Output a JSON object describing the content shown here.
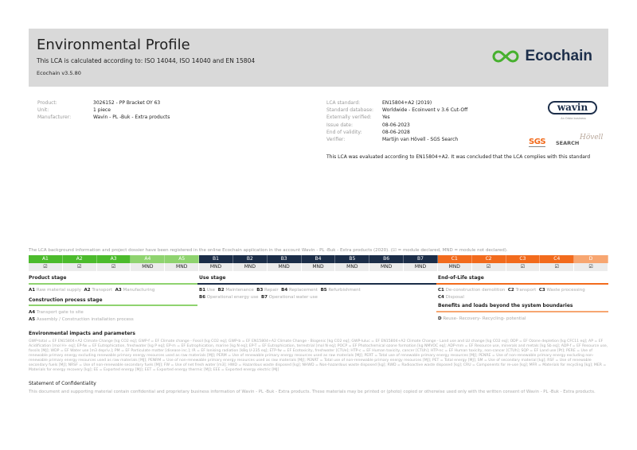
{
  "header": {
    "title": "Environmental Profile",
    "subtitle": "This LCA is calculated according to: ISO 14044, ISO 14040 and EN 15804",
    "version": "Ecochain v3.5.80",
    "logo_text": "Ecochain",
    "logo_color": "#47b02f"
  },
  "product_info": [
    {
      "label": "Product:",
      "value": "3026152 - PP Bracket OY 63"
    },
    {
      "label": "Unit:",
      "value": "1 piece"
    },
    {
      "label": "Manufacturer:",
      "value": "Wavin - PL -Buk - Extra products"
    }
  ],
  "lca_info": [
    {
      "label": "LCA standard:",
      "value": "EN15804+A2 (2019)"
    },
    {
      "label": "Standard database:",
      "value": "Worldwide - Ecoinvent v 3.6 Cut-Off"
    },
    {
      "label": "Externally verified:",
      "value": "Yes"
    },
    {
      "label": "Issue date:",
      "value": "08-06-2023"
    },
    {
      "label": "End of validity:",
      "value": "08-06-2028"
    },
    {
      "label": "Verifier:",
      "value": "Martijn van Hövell - SGS Search"
    }
  ],
  "compliance_note": "This LCA was evaluated according to EN15804+A2. It was concluded that the LCA complies with this standard",
  "logos": {
    "wavin": "wavin",
    "wavin_sub": "An Orbia business",
    "sgs": "SGS",
    "search": "SEARCH",
    "signature": "Hövell"
  },
  "registration_note": "The LCA background information and project dossier have been registered in the online Ecochain application in the account Wavin - PL -Buk - Extra products (2020). (☑ = module declared, MND = module not declared).",
  "modules": [
    {
      "code": "A1",
      "status": "☑",
      "color": "#4cbb2c"
    },
    {
      "code": "A2",
      "status": "☑",
      "color": "#4cbb2c"
    },
    {
      "code": "A3",
      "status": "☑",
      "color": "#4cbb2c"
    },
    {
      "code": "A4",
      "status": "MND",
      "color": "#8fd36f"
    },
    {
      "code": "A5",
      "status": "MND",
      "color": "#8fd36f"
    },
    {
      "code": "B1",
      "status": "MND",
      "color": "#1b2d48"
    },
    {
      "code": "B2",
      "status": "MND",
      "color": "#1b2d48"
    },
    {
      "code": "B3",
      "status": "MND",
      "color": "#1b2d48"
    },
    {
      "code": "B4",
      "status": "MND",
      "color": "#1b2d48"
    },
    {
      "code": "B5",
      "status": "MND",
      "color": "#1b2d48"
    },
    {
      "code": "B6",
      "status": "MND",
      "color": "#1b2d48"
    },
    {
      "code": "B7",
      "status": "MND",
      "color": "#1b2d48"
    },
    {
      "code": "C1",
      "status": "MND",
      "color": "#f26b1d"
    },
    {
      "code": "C2",
      "status": "☑",
      "color": "#f26b1d"
    },
    {
      "code": "C3",
      "status": "☑",
      "color": "#f26b1d"
    },
    {
      "code": "C4",
      "status": "☑",
      "color": "#f26b1d"
    },
    {
      "code": "D",
      "status": "☑",
      "color": "#f7a671"
    }
  ],
  "stages": {
    "product": {
      "title": "Product stage",
      "items": [
        [
          "A1",
          "Raw material supply"
        ],
        [
          "A2",
          "Transport"
        ],
        [
          "A3",
          "Manufacturing"
        ]
      ]
    },
    "construction": {
      "title": "Construction process stage",
      "items": [
        [
          "A4",
          "Transport gate to site"
        ],
        [
          "A5",
          "Assembly / Construction installation process"
        ]
      ]
    },
    "use": {
      "title": "Use stage",
      "items": [
        [
          "B1",
          "Use"
        ],
        [
          "B2",
          "Maintenance"
        ],
        [
          "B3",
          "Repair"
        ],
        [
          "B4",
          "Replacement"
        ],
        [
          "B5",
          "Refurbishment"
        ],
        [
          "B6",
          "Operational energy use"
        ],
        [
          "B7",
          "Operational water use"
        ]
      ]
    },
    "eol": {
      "title": "End-of-Life stage",
      "items": [
        [
          "C1",
          "De-construction demolition"
        ],
        [
          "C2",
          "Transport"
        ],
        [
          "C3",
          "Waste processing"
        ],
        [
          "C4",
          "Disposal"
        ]
      ]
    },
    "beyond": {
      "title": "Benefits and loads beyond the system boundaries",
      "items": [
        [
          "D",
          "Reuse- Recovery- Recycling- potential"
        ]
      ]
    }
  },
  "impacts": {
    "title": "Environmental impacts and parameters",
    "text": "GWP-total = EF EN15804+A2 Climate Change [kg CO2 eq]; GWP-f = EF Climate change - Fossil [kg CO2 eq]; GWP-b = EF EN15804+A2 Climate Change - Biogenic [kg CO2 eq]; GWP-luluc = EF EN15804+A2 Climate Change - Land use and LU change [kg CO2 eq]; ODP = EF Ozone depletion [kg CFC11 eq]; AP = EF Acidification [mol H+ eq]; EP-fw = EF Eutrophication, freshwater [kg P eq]; EP-m = EF Eutrophication, marine [kg N eq]; EP-T = EF Eutrophication, terrestrial [mol N eq]; POCP = EF Photochemical ozone formation [kg NMVOC eq]; ADP-mm = EF Resource use, minerals and metals [kg Sb eq]; ADP-f = EF Resource use, fossils [MJ]; WDP = EF Water use [m3 depriv.]; PM = EF Particulate matter [disease inc.]; IR = EF Ionising radiation [kBq U-235 eq]; ETP-fw = EF Ecotoxicity, freshwater [CTUe]; HTP-c = EF Human toxicity, cancer [CTUh]; HTP-nc = EF Human toxicity, non-cancer [CTUh]; SQP = EF Land use [Pt]; PERE = Use of renewable primary energy excluding renewable primary energy resources used as raw materials [MJ]; PERM = Use of renewable primary energy resources used as raw materials [MJ]; PERT = Total use of renewable primary energy resources [MJ]; PENRE = Use of non-renewable primary energy excluding non-renewable primary energy resources used as raw materials [MJ]; PENRM = Use of non-renewable primary energy resources used as raw materials [MJ]; PENRT = Total use of non-renewable primary energy resources [MJ]; PET = Total energy [MJ]; SM = Use of secondary material [kg]; RSF = Use of renewable secondary fuels [MJ]; NRSF = Use of non-renewable secondary fuels [MJ]; FW = Use of net fresh water [m3]; HWD = Hazardous waste disposed [kg]; NHWD = Non-hazardous waste disposed [kg]; RWD = Radioactive waste disposed [kg]; CRU = Components for re-use [kg]; MFR = Materials for recycling [kg]; MER = Materials for energy recovery [kg]; EE = Exported energy [MJ]; EET = Exported energy thermic [MJ]; EEE = Exported energy electric [MJ]"
  },
  "confidentiality": {
    "title": "Statement of Confidentiality",
    "text": "This document and supporting material contain confidential and proprietary business information of Wavin - PL -Buk - Extra products. These materials may be printed or (photo) copied or otherwise used only with the written consent of Wavin - PL -Buk - Extra products."
  }
}
